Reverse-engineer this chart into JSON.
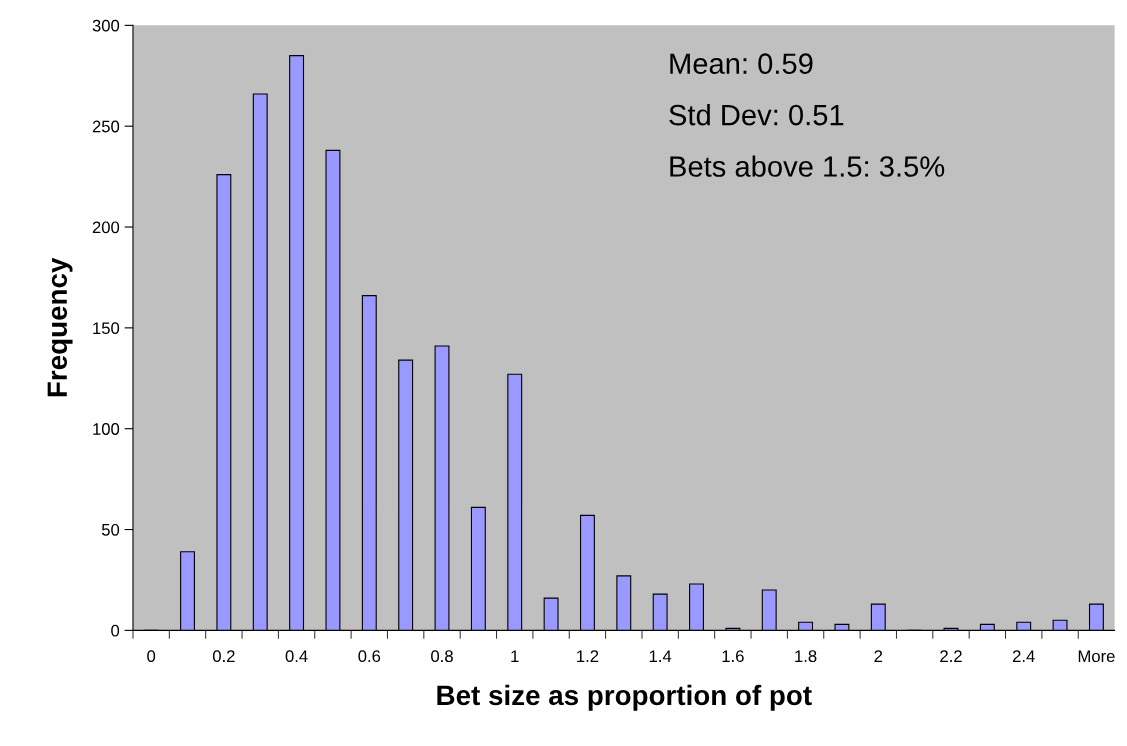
{
  "chart_data": {
    "type": "bar",
    "xlabel": "Bet size as proportion of pot",
    "ylabel": "Frequency",
    "categories": [
      "0",
      null,
      "0.2",
      null,
      "0.4",
      null,
      "0.6",
      null,
      "0.8",
      null,
      "1",
      null,
      "1.2",
      null,
      "1.4",
      null,
      "1.6",
      null,
      "1.8",
      null,
      "2",
      null,
      "2.2",
      null,
      "2.4",
      null,
      "More"
    ],
    "values": [
      0,
      39,
      226,
      266,
      285,
      238,
      166,
      134,
      141,
      61,
      127,
      16,
      57,
      27,
      18,
      23,
      1,
      20,
      4,
      3,
      13,
      0,
      1,
      3,
      4,
      5,
      13
    ],
    "color": "#9999ff",
    "ylim": [
      0,
      300
    ],
    "yticks": [
      0,
      50,
      100,
      150,
      200,
      250,
      300
    ],
    "annotations": [
      "Mean: 0.59",
      "Std Dev: 0.51",
      "Bets above 1.5: 3.5%"
    ],
    "grid": false,
    "legend": false
  }
}
